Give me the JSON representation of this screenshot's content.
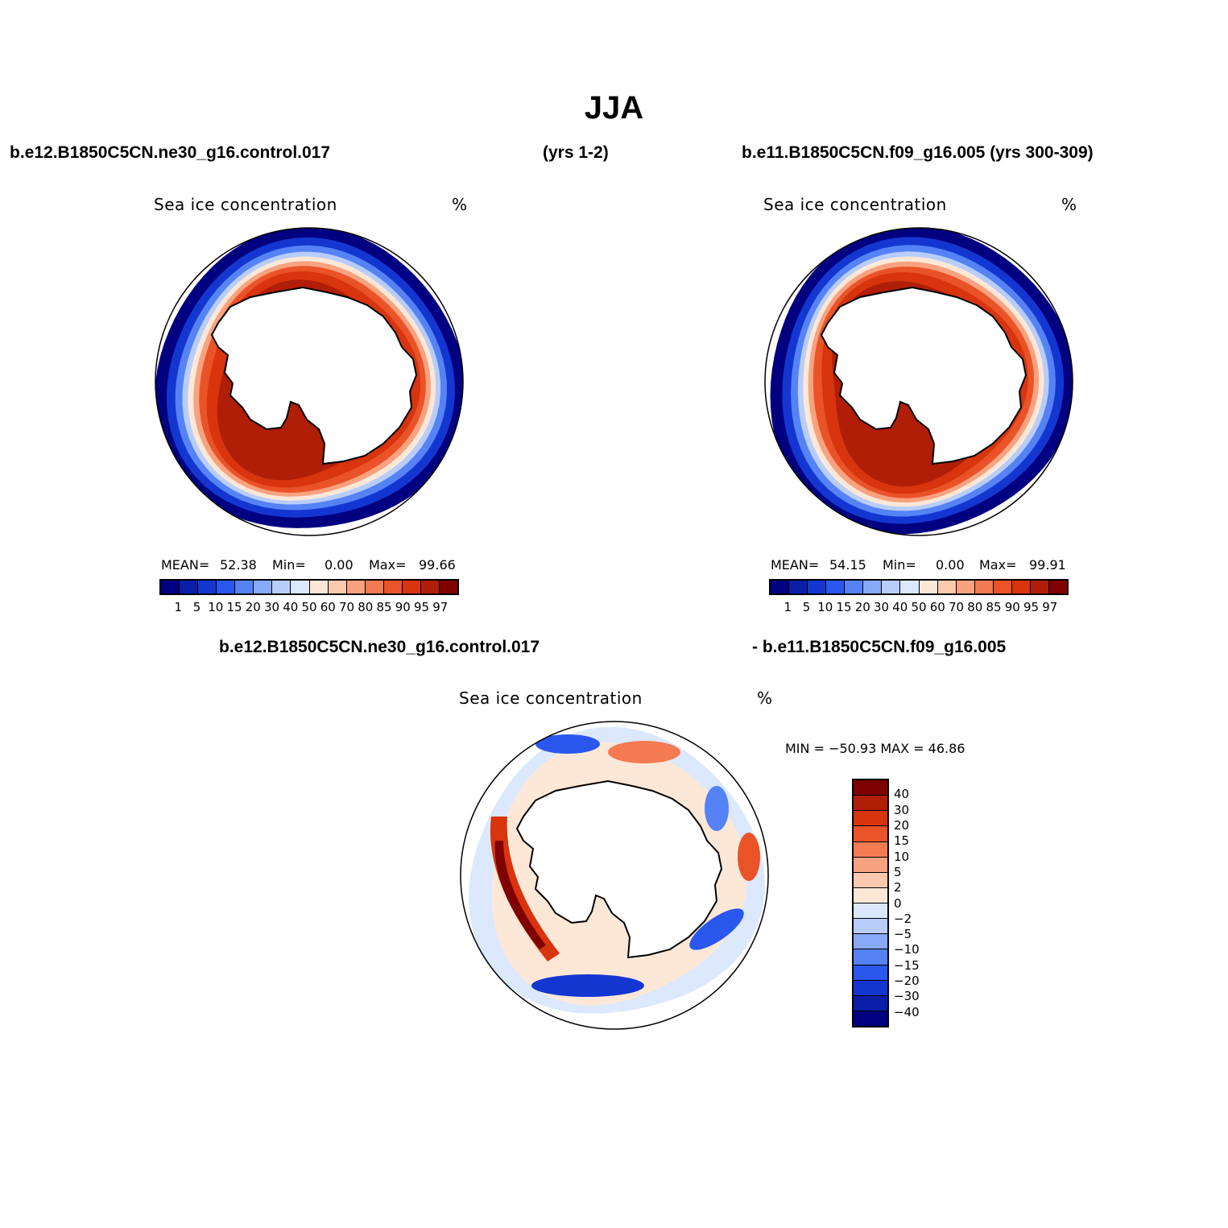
{
  "title": "JJA",
  "headers": {
    "left": "b.e12.B1850C5CN.ne30_g16.control.017",
    "middle": "(yrs 1-2)",
    "right": "b.e11.B1850C5CN.f09_g16.005 (yrs 300-309)"
  },
  "diff_headers": {
    "left": "b.e12.B1850C5CN.ne30_g16.control.017",
    "right": "- b.e11.B1850C5CN.f09_g16.005"
  },
  "panels": [
    {
      "title": "Sea ice concentration",
      "units": "%",
      "mean_label": "MEAN=",
      "mean": "52.38",
      "min_label": "Min=",
      "min": "0.00",
      "max_label": "Max=",
      "max": "99.66"
    },
    {
      "title": "Sea ice concentration",
      "units": "%",
      "mean_label": "MEAN=",
      "mean": "54.15",
      "min_label": "Min=",
      "min": "0.00",
      "max_label": "Max=",
      "max": "99.91"
    }
  ],
  "diff_panel": {
    "title": "Sea ice concentration",
    "units": "%",
    "minmax": "MIN = −50.93 MAX =   46.86"
  },
  "colorbar_levels": [
    "1",
    "5",
    "10",
    "15",
    "20",
    "30",
    "40",
    "50",
    "60",
    "70",
    "80",
    "85",
    "90",
    "95",
    "97"
  ],
  "colorbar_colors": [
    "#000080",
    "#0a1ea8",
    "#1436d0",
    "#2a58ee",
    "#5582f5",
    "#88a9f8",
    "#b8cdfa",
    "#dbe8fd",
    "#fde8d8",
    "#fbc9ad",
    "#f8a280",
    "#f47a52",
    "#ea5328",
    "#d8340d",
    "#b01e08",
    "#7f0000"
  ],
  "diff_levels": [
    "40",
    "30",
    "20",
    "15",
    "10",
    "5",
    "2",
    "0",
    "−2",
    "−5",
    "−10",
    "−15",
    "−20",
    "−30",
    "−40"
  ],
  "diff_colors": [
    "#7f0000",
    "#b01e08",
    "#d8340d",
    "#ea5328",
    "#f47a52",
    "#f8a280",
    "#fbc9ad",
    "#fde8d8",
    "#dbe8fd",
    "#b8cdfa",
    "#88a9f8",
    "#5582f5",
    "#2a58ee",
    "#1436d0",
    "#0a1ea8",
    "#000080"
  ],
  "colors": {
    "land": "#ffffff",
    "coast": "#000000",
    "ice_high": "#7f0000",
    "ice_mid": "#d8340d",
    "ice_edge": "#000080"
  }
}
